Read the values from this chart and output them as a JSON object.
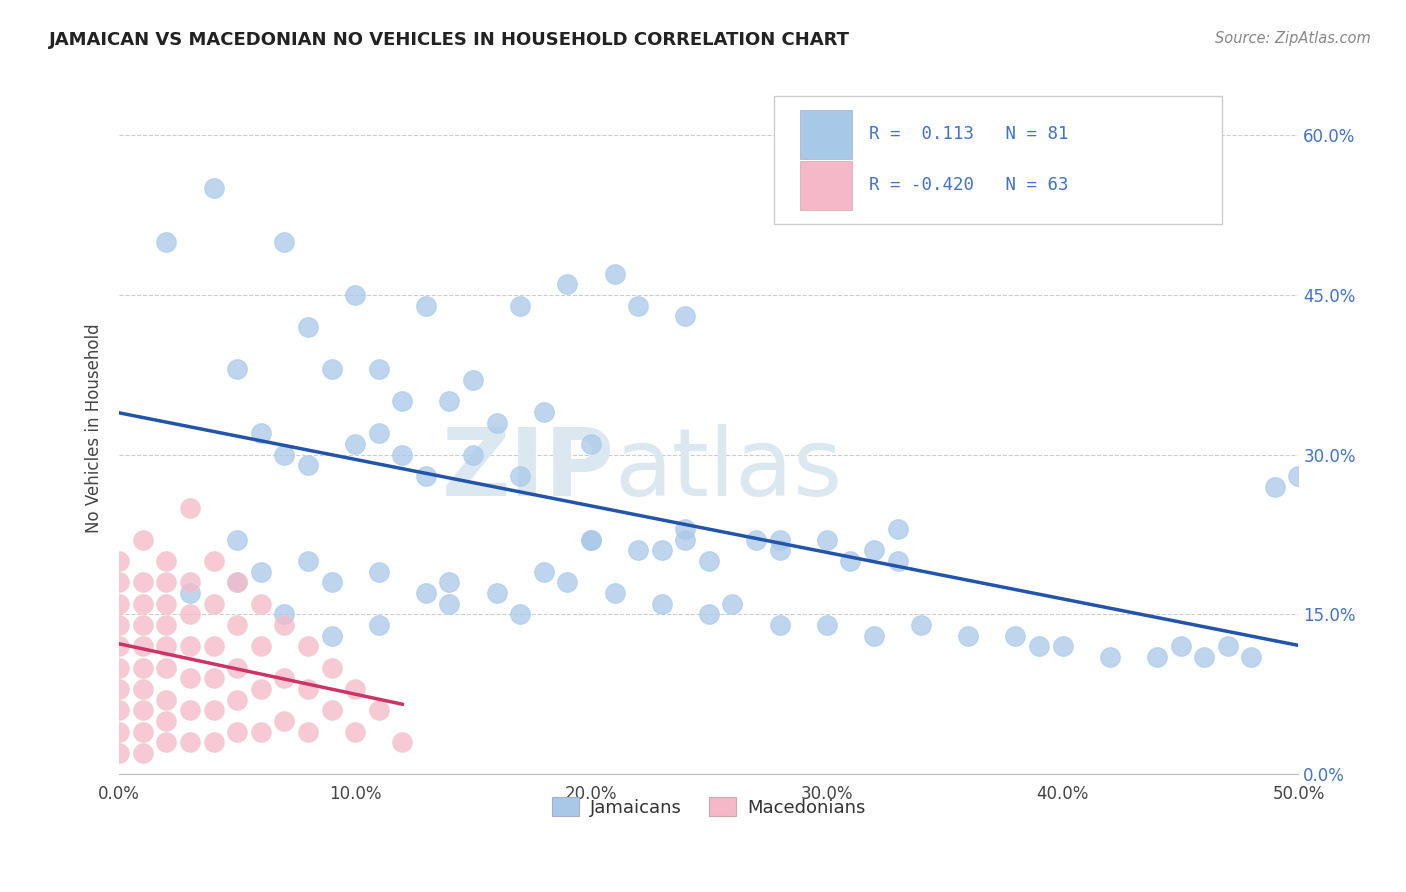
{
  "title": "JAMAICAN VS MACEDONIAN NO VEHICLES IN HOUSEHOLD CORRELATION CHART",
  "source": "Source: ZipAtlas.com",
  "xlim": [
    0.0,
    0.5
  ],
  "ylim": [
    0.0,
    0.65
  ],
  "jamaican_R": 0.113,
  "jamaican_N": 81,
  "macedonian_R": -0.42,
  "macedonian_N": 63,
  "blue_color": "#a8c8e8",
  "pink_color": "#f4b8c8",
  "blue_line_color": "#2255aa",
  "pink_line_color": "#cc3366",
  "legend_text_color": "#4472c4",
  "watermark_color": "#dce8f0",
  "ylabel": "No Vehicles in Household",
  "jamaican_x": [
    0.02,
    0.04,
    0.07,
    0.1,
    0.13,
    0.17,
    0.19,
    0.21,
    0.22,
    0.24,
    0.05,
    0.08,
    0.09,
    0.11,
    0.12,
    0.14,
    0.15,
    0.16,
    0.18,
    0.2,
    0.06,
    0.07,
    0.08,
    0.1,
    0.11,
    0.12,
    0.13,
    0.15,
    0.17,
    0.2,
    0.22,
    0.23,
    0.24,
    0.25,
    0.27,
    0.28,
    0.3,
    0.31,
    0.32,
    0.33,
    0.05,
    0.06,
    0.08,
    0.09,
    0.11,
    0.13,
    0.14,
    0.16,
    0.18,
    0.19,
    0.21,
    0.23,
    0.25,
    0.26,
    0.28,
    0.3,
    0.32,
    0.34,
    0.36,
    0.38,
    0.39,
    0.4,
    0.42,
    0.44,
    0.45,
    0.46,
    0.47,
    0.48,
    0.49,
    0.5,
    0.03,
    0.05,
    0.07,
    0.09,
    0.11,
    0.14,
    0.17,
    0.2,
    0.24,
    0.28,
    0.33
  ],
  "jamaican_y": [
    0.5,
    0.55,
    0.5,
    0.45,
    0.44,
    0.44,
    0.46,
    0.47,
    0.44,
    0.43,
    0.38,
    0.42,
    0.38,
    0.38,
    0.35,
    0.35,
    0.37,
    0.33,
    0.34,
    0.31,
    0.32,
    0.3,
    0.29,
    0.31,
    0.32,
    0.3,
    0.28,
    0.3,
    0.28,
    0.22,
    0.21,
    0.21,
    0.23,
    0.2,
    0.22,
    0.21,
    0.22,
    0.2,
    0.21,
    0.23,
    0.22,
    0.19,
    0.2,
    0.18,
    0.19,
    0.17,
    0.18,
    0.17,
    0.19,
    0.18,
    0.17,
    0.16,
    0.15,
    0.16,
    0.14,
    0.14,
    0.13,
    0.14,
    0.13,
    0.13,
    0.12,
    0.12,
    0.11,
    0.11,
    0.12,
    0.11,
    0.12,
    0.11,
    0.27,
    0.28,
    0.17,
    0.18,
    0.15,
    0.13,
    0.14,
    0.16,
    0.15,
    0.22,
    0.22,
    0.22,
    0.2
  ],
  "macedonian_x": [
    0.0,
    0.0,
    0.0,
    0.0,
    0.0,
    0.0,
    0.0,
    0.0,
    0.0,
    0.0,
    0.01,
    0.01,
    0.01,
    0.01,
    0.01,
    0.01,
    0.01,
    0.01,
    0.01,
    0.01,
    0.02,
    0.02,
    0.02,
    0.02,
    0.02,
    0.02,
    0.02,
    0.02,
    0.02,
    0.03,
    0.03,
    0.03,
    0.03,
    0.03,
    0.03,
    0.03,
    0.04,
    0.04,
    0.04,
    0.04,
    0.04,
    0.04,
    0.05,
    0.05,
    0.05,
    0.05,
    0.05,
    0.06,
    0.06,
    0.06,
    0.06,
    0.07,
    0.07,
    0.07,
    0.08,
    0.08,
    0.08,
    0.09,
    0.09,
    0.1,
    0.1,
    0.11,
    0.12
  ],
  "macedonian_y": [
    0.2,
    0.18,
    0.16,
    0.14,
    0.12,
    0.1,
    0.08,
    0.06,
    0.04,
    0.02,
    0.22,
    0.18,
    0.16,
    0.14,
    0.12,
    0.1,
    0.08,
    0.06,
    0.04,
    0.02,
    0.2,
    0.18,
    0.16,
    0.14,
    0.12,
    0.1,
    0.07,
    0.05,
    0.03,
    0.25,
    0.18,
    0.15,
    0.12,
    0.09,
    0.06,
    0.03,
    0.2,
    0.16,
    0.12,
    0.09,
    0.06,
    0.03,
    0.18,
    0.14,
    0.1,
    0.07,
    0.04,
    0.16,
    0.12,
    0.08,
    0.04,
    0.14,
    0.09,
    0.05,
    0.12,
    0.08,
    0.04,
    0.1,
    0.06,
    0.08,
    0.04,
    0.06,
    0.03
  ]
}
